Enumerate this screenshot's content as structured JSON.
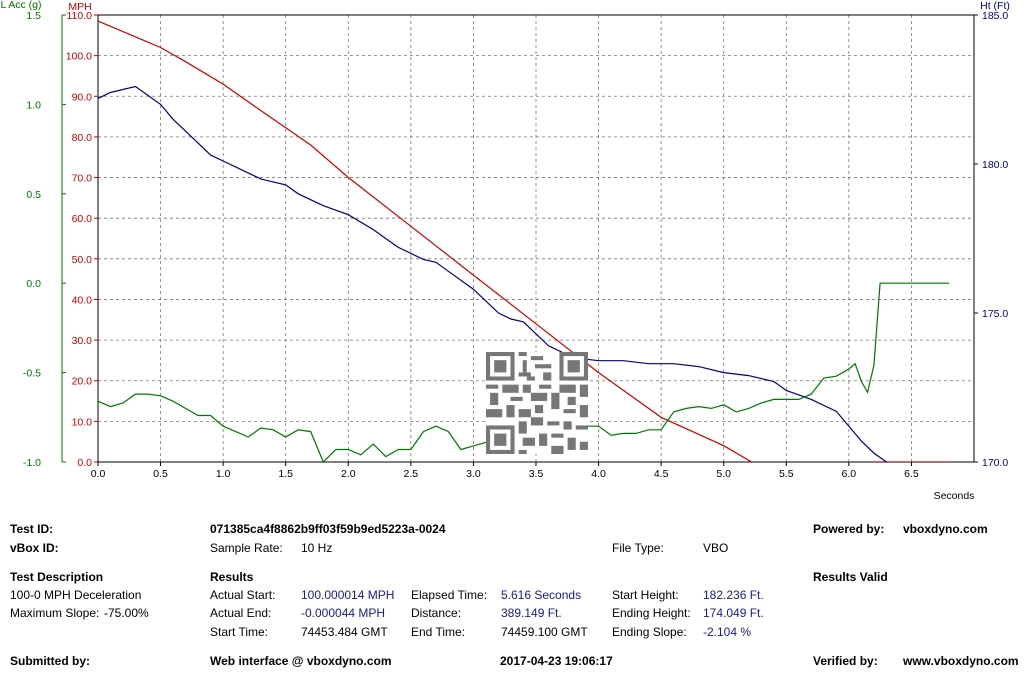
{
  "chart_data": {
    "type": "line",
    "x": {
      "label": "Seconds",
      "range": [
        0.0,
        7.0
      ],
      "ticks": [
        "0.0",
        "0.5",
        "1.0",
        "1.5",
        "2.0",
        "2.5",
        "3.0",
        "3.5",
        "4.0",
        "4.5",
        "5.0",
        "5.5",
        "6.0",
        "6.5"
      ]
    },
    "axes": {
      "lacc": {
        "label": "L Acc (g)",
        "range": [
          -1.0,
          1.5
        ],
        "ticks": [
          "1.5",
          "1.0",
          "0.5",
          "0.0",
          "-0.5",
          "-1.0"
        ],
        "color": "#007700"
      },
      "mph": {
        "label": "MPH",
        "range": [
          0.0,
          110.0
        ],
        "ticks": [
          "110.0",
          "100.0",
          "90.0",
          "80.0",
          "70.0",
          "60.0",
          "50.0",
          "40.0",
          "30.0",
          "20.0",
          "10.0",
          "0.0"
        ],
        "color": "#cc0000"
      },
      "ht": {
        "label": "Ht (Ft)",
        "range": [
          170.0,
          185.0
        ],
        "ticks": [
          "185.0",
          "180.0",
          "175.0",
          "170.0"
        ],
        "color": "#000080"
      }
    },
    "grid": true,
    "series": [
      {
        "axis": "mph",
        "color": "#cc0000",
        "x": [
          0.0,
          0.5,
          0.7,
          1.0,
          1.3,
          1.7,
          2.0,
          2.5,
          3.0,
          3.5,
          4.0,
          4.5,
          5.0,
          5.5,
          6.0,
          6.2,
          6.8
        ],
        "y": [
          108.5,
          102,
          98.5,
          93,
          86.5,
          78,
          70,
          58,
          46,
          34,
          22,
          11,
          4,
          -5,
          -13,
          0,
          0
        ]
      },
      {
        "axis": "ht",
        "color": "#000080",
        "x": [
          0.0,
          0.1,
          0.3,
          0.4,
          0.5,
          0.6,
          0.8,
          0.9,
          1.0,
          1.2,
          1.3,
          1.5,
          1.6,
          1.8,
          2.0,
          2.2,
          2.4,
          2.6,
          2.7,
          2.8,
          3.0,
          3.2,
          3.3,
          3.4,
          3.6,
          3.8,
          4.0,
          4.2,
          4.4,
          4.5,
          4.6,
          4.8,
          5.0,
          5.2,
          5.4,
          5.5,
          5.7,
          5.9,
          6.0,
          6.1,
          6.2,
          6.3,
          6.4,
          6.5,
          6.6,
          6.7,
          6.8
        ],
        "y": [
          182.2,
          182.4,
          182.6,
          182.3,
          182.0,
          181.5,
          180.7,
          180.3,
          180.1,
          179.7,
          179.5,
          179.3,
          179.0,
          178.6,
          178.3,
          177.8,
          177.2,
          176.8,
          176.7,
          176.4,
          175.8,
          175.0,
          174.8,
          174.7,
          173.9,
          173.5,
          173.4,
          173.4,
          173.3,
          173.3,
          173.3,
          173.2,
          173.0,
          172.9,
          172.7,
          172.4,
          172.1,
          171.7,
          171.2,
          170.7,
          170.3,
          170.0,
          169.7,
          169.3,
          168.9,
          168.5,
          168.3
        ]
      },
      {
        "axis": "lacc",
        "color": "#007700",
        "x": [
          0.0,
          0.1,
          0.2,
          0.3,
          0.4,
          0.5,
          0.6,
          0.7,
          0.8,
          0.9,
          1.0,
          1.1,
          1.2,
          1.3,
          1.4,
          1.5,
          1.6,
          1.7,
          1.8,
          1.9,
          2.0,
          2.1,
          2.2,
          2.3,
          2.4,
          2.5,
          2.6,
          2.7,
          2.8,
          2.9,
          3.0,
          3.1,
          3.2,
          3.3,
          3.4,
          3.5,
          3.6,
          3.7,
          3.8,
          3.9,
          4.0,
          4.1,
          4.2,
          4.3,
          4.4,
          4.5,
          4.6,
          4.7,
          4.8,
          4.9,
          5.0,
          5.1,
          5.2,
          5.3,
          5.4,
          5.5,
          5.6,
          5.7,
          5.8,
          5.9,
          6.0,
          6.05,
          6.1,
          6.15,
          6.2,
          6.25,
          6.3,
          6.5,
          6.8
        ],
        "y": [
          -0.66,
          -0.69,
          -0.67,
          -0.62,
          -0.62,
          -0.63,
          -0.66,
          -0.7,
          -0.74,
          -0.74,
          -0.8,
          -0.83,
          -0.86,
          -0.81,
          -0.82,
          -0.86,
          -0.82,
          -0.83,
          -1.0,
          -0.93,
          -0.93,
          -0.96,
          -0.9,
          -0.97,
          -0.93,
          -0.93,
          -0.83,
          -0.8,
          -0.83,
          -0.93,
          -0.91,
          -0.89,
          -0.9,
          -0.94,
          -0.91,
          -0.86,
          -0.83,
          -0.85,
          -0.83,
          -0.8,
          -0.8,
          -0.85,
          -0.84,
          -0.84,
          -0.82,
          -0.82,
          -0.72,
          -0.7,
          -0.69,
          -0.7,
          -0.68,
          -0.72,
          -0.7,
          -0.67,
          -0.65,
          -0.65,
          -0.65,
          -0.62,
          -0.53,
          -0.52,
          -0.48,
          -0.45,
          -0.55,
          -0.61,
          -0.46,
          0.0,
          0.0,
          0.0,
          0.0
        ]
      }
    ]
  },
  "info": {
    "test_id_label": "Test ID:",
    "test_id_value": "071385ca4f8862b9ff03f59b9ed5223a-0024",
    "powered_by_label": "Powered by:",
    "powered_by_value": "vboxdyno.com",
    "vbox_id_label": "vBox ID:",
    "sample_rate_label": "Sample Rate:",
    "sample_rate_value": "10 Hz",
    "file_type_label": "File Type:",
    "file_type_value": "VBO",
    "test_description_heading": "Test Description",
    "results_heading": "Results",
    "results_valid": "Results Valid",
    "test_description": "100-0 MPH Deceleration",
    "max_slope_label": "Maximum Slope:",
    "max_slope_value": "-75.00%",
    "actual_start_label": "Actual Start:",
    "actual_start_value": "100.000014 MPH",
    "elapsed_time_label": "Elapsed Time:",
    "elapsed_time_value": "5.616 Seconds",
    "start_height_label": "Start Height:",
    "start_height_value": "182.236 Ft.",
    "actual_end_label": "Actual End:",
    "actual_end_value": "-0.000044 MPH",
    "distance_label": "Distance:",
    "distance_value": "389.149 Ft.",
    "ending_height_label": "Ending Height:",
    "ending_height_value": "174.049 Ft.",
    "start_time_label": "Start Time:",
    "start_time_value": "74453.484 GMT",
    "end_time_label": "End Time:",
    "end_time_value": "74459.100 GMT",
    "ending_slope_label": "Ending Slope:",
    "ending_slope_value": "-2.104 %",
    "submitted_by_label": "Submitted by:",
    "web_interface": "Web interface @ vboxdyno.com",
    "timestamp": "2017-04-23 19:06:17",
    "verified_by_label": "Verified by:",
    "verified_by_value": "www.vboxdyno.com"
  },
  "qr_code": {
    "icon": "qr-code-icon"
  }
}
